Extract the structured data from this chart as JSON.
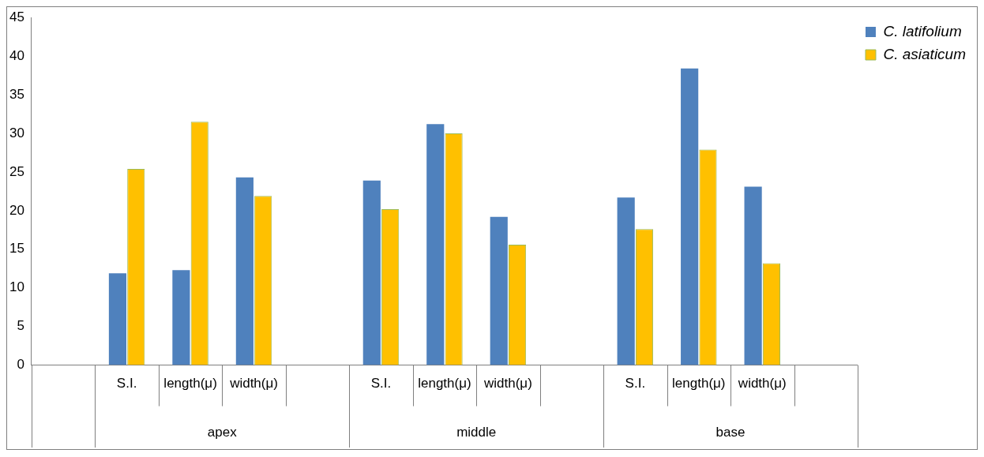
{
  "chart_data": {
    "type": "bar",
    "categories": [
      null,
      "S.I.",
      "length(μ)",
      "width(μ)",
      null,
      "S.I.",
      "length(μ)",
      "width(μ)",
      null,
      "S.I.",
      "length(μ)",
      "width(μ)",
      null
    ],
    "series": [
      {
        "name": "C. latifolium",
        "color": "#4f81bd",
        "values": [
          null,
          11.9,
          12.3,
          24.3,
          null,
          23.9,
          31.2,
          19.2,
          null,
          21.7,
          38.4,
          23.1,
          null
        ]
      },
      {
        "name": "C. asiaticum",
        "color": "#ffc000",
        "values": [
          null,
          25.4,
          31.5,
          21.9,
          null,
          20.2,
          30.0,
          15.6,
          null,
          17.6,
          27.9,
          13.2,
          null
        ]
      }
    ],
    "annotations": [
      "apex",
      "middle",
      "base"
    ],
    "ylim": [
      0,
      45
    ],
    "yticks": [
      0,
      5,
      10,
      15,
      20,
      25,
      30,
      35,
      40,
      45
    ],
    "grid": false,
    "legend": "right"
  }
}
